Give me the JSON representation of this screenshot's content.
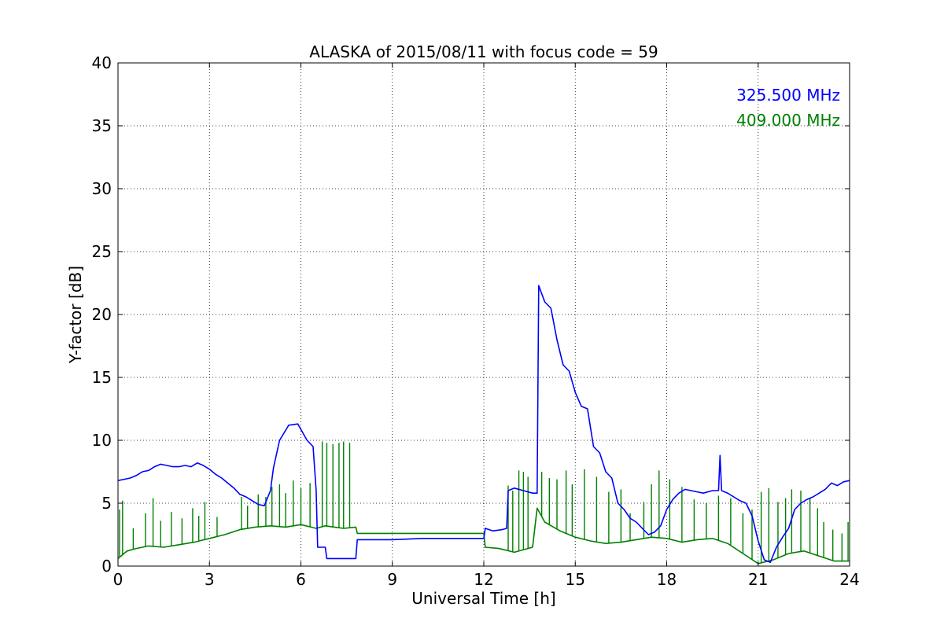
{
  "chart_data": {
    "type": "line",
    "title": "ALASKA of 2015/08/11 with focus code = 59",
    "xlabel": "Universal Time [h]",
    "ylabel": "Y-factor [dB]",
    "xlim": [
      0,
      24
    ],
    "ylim": [
      0,
      40
    ],
    "xticks": [
      0,
      3,
      6,
      9,
      12,
      15,
      18,
      21,
      24
    ],
    "yticks": [
      0,
      5,
      10,
      15,
      20,
      25,
      30,
      35,
      40
    ],
    "grid": true,
    "legend_position": "top-right",
    "series": [
      {
        "name": "325.500 MHz",
        "color": "#0000ff",
        "x": [
          0.0,
          0.2,
          0.4,
          0.6,
          0.8,
          1.0,
          1.2,
          1.4,
          1.6,
          1.8,
          2.0,
          2.2,
          2.4,
          2.6,
          2.8,
          3.0,
          3.2,
          3.4,
          3.6,
          3.8,
          4.0,
          4.2,
          4.4,
          4.6,
          4.8,
          5.0,
          5.1,
          5.3,
          5.6,
          5.9,
          6.2,
          6.4,
          6.5,
          6.55,
          6.8,
          6.85,
          7.0,
          7.4,
          7.8,
          7.85,
          8.5,
          9.0,
          10.0,
          11.0,
          12.0,
          12.05,
          12.3,
          12.6,
          12.75,
          12.8,
          13.0,
          13.3,
          13.6,
          13.75,
          13.8,
          14.0,
          14.2,
          14.4,
          14.6,
          14.8,
          15.0,
          15.2,
          15.4,
          15.6,
          15.8,
          16.0,
          16.2,
          16.4,
          16.6,
          16.8,
          17.0,
          17.2,
          17.4,
          17.6,
          17.8,
          18.0,
          18.2,
          18.4,
          18.6,
          18.8,
          19.0,
          19.2,
          19.5,
          19.7,
          19.75,
          19.8,
          20.0,
          20.2,
          20.4,
          20.6,
          20.8,
          21.0,
          21.2,
          21.4,
          21.6,
          21.8,
          22.0,
          22.2,
          22.4,
          22.6,
          22.8,
          23.0,
          23.2,
          23.4,
          23.6,
          23.8,
          24.0
        ],
        "y": [
          6.8,
          6.9,
          7.0,
          7.2,
          7.5,
          7.6,
          7.9,
          8.1,
          8.0,
          7.9,
          7.9,
          8.0,
          7.9,
          8.2,
          8.0,
          7.7,
          7.3,
          7.0,
          6.6,
          6.2,
          5.7,
          5.5,
          5.2,
          4.9,
          4.8,
          6.0,
          7.8,
          10.0,
          11.2,
          11.3,
          10.0,
          9.5,
          6.0,
          1.5,
          1.5,
          0.6,
          0.6,
          0.6,
          0.6,
          2.1,
          2.1,
          2.1,
          2.2,
          2.2,
          2.2,
          3.0,
          2.8,
          2.9,
          3.0,
          6.0,
          6.2,
          6.0,
          5.8,
          5.8,
          22.3,
          21.0,
          20.5,
          18.0,
          16.0,
          15.5,
          13.8,
          12.7,
          12.5,
          9.5,
          9.0,
          7.5,
          7.0,
          5.0,
          4.5,
          3.8,
          3.5,
          3.0,
          2.5,
          2.7,
          3.2,
          4.5,
          5.3,
          5.8,
          6.1,
          6.0,
          5.9,
          5.8,
          6.0,
          6.0,
          8.8,
          6.0,
          5.8,
          5.5,
          5.2,
          5.0,
          4.0,
          2.0,
          0.5,
          0.3,
          1.5,
          2.3,
          3.0,
          4.5,
          5.0,
          5.3,
          5.5,
          5.8,
          6.1,
          6.6,
          6.4,
          6.7,
          6.8
        ]
      },
      {
        "name": "409.000 MHz",
        "color": "#008000",
        "x": [
          0.0,
          0.3,
          0.6,
          1.0,
          1.5,
          2.0,
          2.5,
          3.0,
          3.5,
          4.0,
          4.5,
          5.0,
          5.5,
          6.0,
          6.5,
          6.8,
          7.1,
          7.4,
          7.8,
          7.85,
          9.0,
          10.0,
          11.0,
          12.0,
          12.05,
          12.5,
          13.0,
          13.6,
          13.75,
          14.0,
          14.5,
          15.0,
          15.5,
          16.0,
          16.5,
          17.0,
          17.5,
          18.0,
          18.5,
          19.0,
          19.5,
          20.0,
          20.5,
          21.0,
          21.5,
          22.0,
          22.5,
          23.0,
          23.5,
          24.0
        ],
        "y": [
          0.6,
          1.2,
          1.4,
          1.6,
          1.5,
          1.7,
          1.9,
          2.2,
          2.5,
          2.9,
          3.1,
          3.2,
          3.1,
          3.3,
          3.0,
          3.2,
          3.1,
          3.0,
          3.1,
          2.6,
          2.6,
          2.6,
          2.6,
          2.6,
          1.5,
          1.4,
          1.1,
          1.5,
          4.6,
          3.5,
          2.8,
          2.3,
          2.0,
          1.8,
          1.9,
          2.1,
          2.3,
          2.2,
          1.9,
          2.1,
          2.2,
          1.8,
          1.0,
          0.2,
          0.5,
          1.0,
          1.2,
          0.8,
          0.4,
          0.4
        ],
        "spikes": [
          [
            0.05,
            4.5
          ],
          [
            0.15,
            5.2
          ],
          [
            0.5,
            3.0
          ],
          [
            0.9,
            4.2
          ],
          [
            1.15,
            5.4
          ],
          [
            1.4,
            3.6
          ],
          [
            1.75,
            4.3
          ],
          [
            2.1,
            3.8
          ],
          [
            2.45,
            4.6
          ],
          [
            2.65,
            4.0
          ],
          [
            2.85,
            5.1
          ],
          [
            3.25,
            3.9
          ],
          [
            4.05,
            5.5
          ],
          [
            4.25,
            4.8
          ],
          [
            4.6,
            5.7
          ],
          [
            4.85,
            5.5
          ],
          [
            5.05,
            6.3
          ],
          [
            5.3,
            6.5
          ],
          [
            5.5,
            5.8
          ],
          [
            5.75,
            6.8
          ],
          [
            6.0,
            6.2
          ],
          [
            6.3,
            6.6
          ],
          [
            6.7,
            9.9
          ],
          [
            6.85,
            9.8
          ],
          [
            7.05,
            9.7
          ],
          [
            7.25,
            9.8
          ],
          [
            7.4,
            9.9
          ],
          [
            7.6,
            9.8
          ],
          [
            12.8,
            6.4
          ],
          [
            12.95,
            6.0
          ],
          [
            13.15,
            7.6
          ],
          [
            13.3,
            7.5
          ],
          [
            13.45,
            7.1
          ],
          [
            13.9,
            7.5
          ],
          [
            14.15,
            7.0
          ],
          [
            14.4,
            6.9
          ],
          [
            14.7,
            7.6
          ],
          [
            14.9,
            6.5
          ],
          [
            15.3,
            7.7
          ],
          [
            15.7,
            7.1
          ],
          [
            16.1,
            5.9
          ],
          [
            16.5,
            6.1
          ],
          [
            16.8,
            4.2
          ],
          [
            17.25,
            5.1
          ],
          [
            17.5,
            6.5
          ],
          [
            17.75,
            7.6
          ],
          [
            18.1,
            6.9
          ],
          [
            18.5,
            6.3
          ],
          [
            18.9,
            5.3
          ],
          [
            19.3,
            5.0
          ],
          [
            19.7,
            5.6
          ],
          [
            20.1,
            5.4
          ],
          [
            20.5,
            4.2
          ],
          [
            20.8,
            4.5
          ],
          [
            21.1,
            5.9
          ],
          [
            21.35,
            6.2
          ],
          [
            21.65,
            5.1
          ],
          [
            21.9,
            5.4
          ],
          [
            22.1,
            6.1
          ],
          [
            22.4,
            6.0
          ],
          [
            22.7,
            5.4
          ],
          [
            22.95,
            4.6
          ],
          [
            23.15,
            3.5
          ],
          [
            23.45,
            2.9
          ],
          [
            23.75,
            2.6
          ],
          [
            23.95,
            3.5
          ]
        ]
      }
    ]
  }
}
